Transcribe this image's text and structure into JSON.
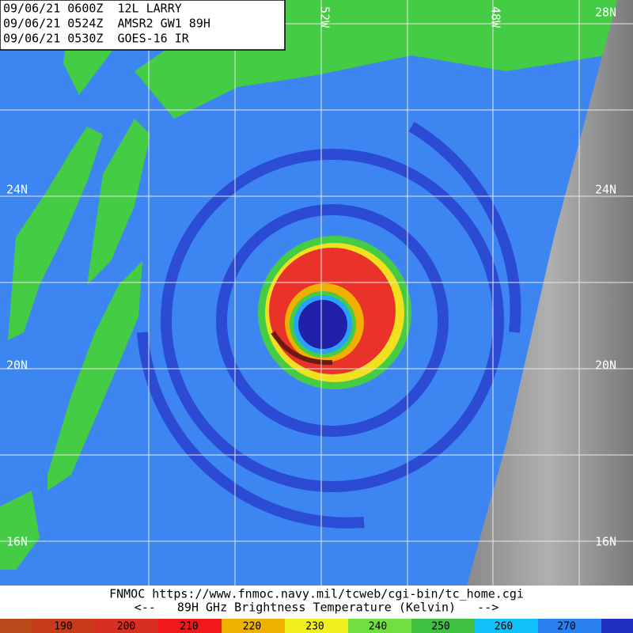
{
  "header": {
    "lines": [
      "09/06/21 0600Z  12L LARRY",
      "09/06/21 0524Z  AMSR2 GW1 89H",
      "09/06/21 0530Z  GOES-16 IR"
    ]
  },
  "map": {
    "lat_labels": [
      "28N",
      "24N",
      "20N",
      "16N"
    ],
    "lon_labels": [
      "52W",
      "48W"
    ]
  },
  "footer": {
    "source": "FNMOC https://www.fnmoc.navy.mil/tcweb/cgi-bin/tc_home.cgi",
    "caption": "<--   89H GHz Brightness Temperature (Kelvin)   -->"
  },
  "colorbar": {
    "ticks": [
      190,
      200,
      210,
      220,
      230,
      240,
      250,
      260,
      270
    ]
  }
}
